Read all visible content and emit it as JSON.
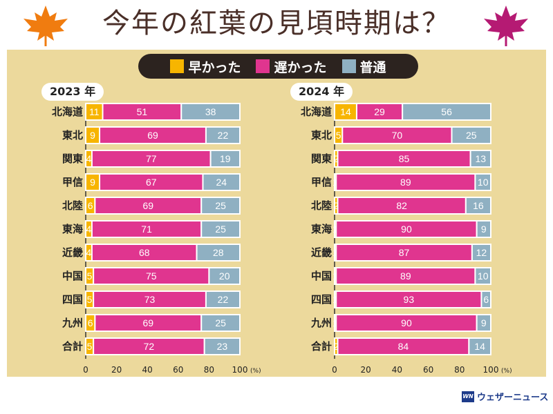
{
  "title": "今年の紅葉の見頃時期は？",
  "legend": [
    {
      "label": "早かった",
      "color": "#f7b500"
    },
    {
      "label": "遅かった",
      "color": "#e0358f"
    },
    {
      "label": "普通",
      "color": "#8fb0c2"
    }
  ],
  "watermark": {
    "logo": "WN",
    "text": "ウェザーニュース"
  },
  "chart_data": [
    {
      "type": "bar",
      "stacked": true,
      "orientation": "horizontal",
      "year_label": "2023 年",
      "categories": [
        "北海道",
        "東北",
        "関東",
        "甲信",
        "北陸",
        "東海",
        "近畿",
        "中国",
        "四国",
        "九州",
        "合計"
      ],
      "series": [
        {
          "name": "早かった",
          "values": [
            11,
            9,
            4,
            9,
            6,
            4,
            4,
            5,
            5,
            6,
            5
          ]
        },
        {
          "name": "遅かった",
          "values": [
            51,
            69,
            77,
            67,
            69,
            71,
            68,
            75,
            73,
            69,
            72
          ]
        },
        {
          "name": "普通",
          "values": [
            38,
            22,
            19,
            24,
            25,
            25,
            28,
            20,
            22,
            25,
            23
          ]
        }
      ],
      "xlim": [
        0,
        100
      ],
      "xticks": [
        "0",
        "20",
        "40",
        "60",
        "80",
        "100"
      ],
      "xunit": "(%)",
      "grid": false
    },
    {
      "type": "bar",
      "stacked": true,
      "orientation": "horizontal",
      "year_label": "2024 年",
      "categories": [
        "北海道",
        "東北",
        "関東",
        "甲信",
        "北陸",
        "東海",
        "近畿",
        "中国",
        "四国",
        "九州",
        "合計"
      ],
      "series": [
        {
          "name": "早かった",
          "values": [
            14,
            5,
            2,
            1,
            2,
            1,
            1,
            1,
            1,
            1,
            2
          ]
        },
        {
          "name": "遅かった",
          "values": [
            29,
            70,
            85,
            89,
            82,
            90,
            87,
            89,
            93,
            90,
            84
          ]
        },
        {
          "name": "普通",
          "values": [
            56,
            25,
            13,
            10,
            16,
            9,
            12,
            10,
            6,
            9,
            14
          ]
        }
      ],
      "xlim": [
        0,
        100
      ],
      "xticks": [
        "0",
        "20",
        "40",
        "60",
        "80",
        "100"
      ],
      "xunit": "(%)",
      "grid": false
    }
  ]
}
